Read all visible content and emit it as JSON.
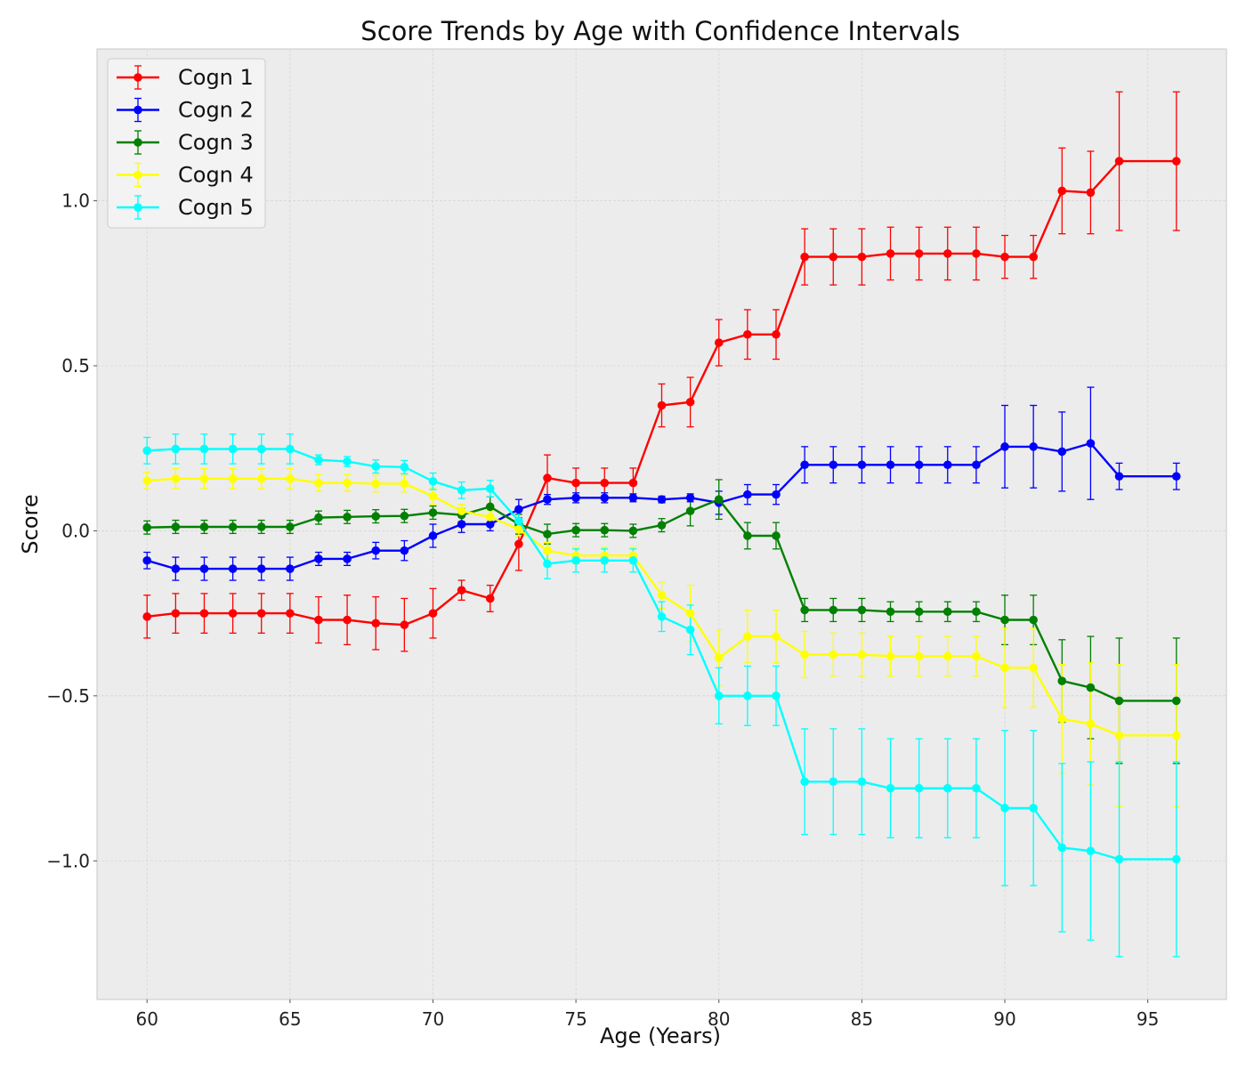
{
  "chart_data": {
    "type": "line",
    "title": "Score Trends by Age with Confidence Intervals",
    "xlabel": "Age (Years)",
    "ylabel": "Score",
    "xlim": [
      58.25,
      97.75
    ],
    "ylim": [
      -1.42,
      1.46
    ],
    "xticks": [
      60,
      65,
      70,
      75,
      80,
      85,
      90,
      95
    ],
    "xtick_labels": [
      "60",
      "65",
      "70",
      "75",
      "80",
      "85",
      "90",
      "95"
    ],
    "yticks": [
      -1.0,
      -0.5,
      0.0,
      0.5,
      1.0
    ],
    "ytick_labels": [
      "−1.0",
      "−0.5",
      "0.0",
      "0.5",
      "1.0"
    ],
    "grid": true,
    "legend": "top-left",
    "x": [
      60,
      61,
      62,
      63,
      64,
      65,
      66,
      67,
      68,
      69,
      70,
      71,
      72,
      73,
      74,
      75,
      76,
      77,
      78,
      79,
      80,
      81,
      82,
      83,
      84,
      85,
      86,
      87,
      88,
      89,
      90,
      91,
      92,
      93,
      94,
      96
    ],
    "series": [
      {
        "name": "Cogn 1",
        "color": "#ff0000",
        "values": [
          -0.26,
          -0.25,
          -0.25,
          -0.25,
          -0.25,
          -0.25,
          -0.27,
          -0.27,
          -0.28,
          -0.285,
          -0.25,
          -0.18,
          -0.205,
          -0.04,
          0.16,
          0.145,
          0.145,
          0.145,
          0.38,
          0.39,
          0.57,
          0.595,
          0.595,
          0.83,
          0.83,
          0.83,
          0.84,
          0.84,
          0.84,
          0.84,
          0.83,
          0.83,
          1.03,
          1.025,
          1.12,
          1.12
        ],
        "errors": [
          0.065,
          0.06,
          0.06,
          0.06,
          0.06,
          0.06,
          0.07,
          0.075,
          0.08,
          0.08,
          0.075,
          0.03,
          0.04,
          0.08,
          0.07,
          0.045,
          0.045,
          0.045,
          0.065,
          0.075,
          0.07,
          0.075,
          0.075,
          0.085,
          0.085,
          0.085,
          0.08,
          0.08,
          0.08,
          0.08,
          0.065,
          0.065,
          0.13,
          0.125,
          0.21,
          0.21
        ]
      },
      {
        "name": "Cogn 2",
        "color": "#0000ff",
        "values": [
          -0.09,
          -0.115,
          -0.115,
          -0.115,
          -0.115,
          -0.115,
          -0.085,
          -0.085,
          -0.06,
          -0.06,
          -0.015,
          0.02,
          0.02,
          0.065,
          0.095,
          0.1,
          0.1,
          0.1,
          0.095,
          0.1,
          0.085,
          0.11,
          0.11,
          0.2,
          0.2,
          0.2,
          0.2,
          0.2,
          0.2,
          0.2,
          0.255,
          0.255,
          0.24,
          0.265,
          0.165,
          0.165
        ],
        "errors": [
          0.025,
          0.035,
          0.035,
          0.035,
          0.035,
          0.035,
          0.02,
          0.02,
          0.025,
          0.03,
          0.035,
          0.025,
          0.02,
          0.03,
          0.015,
          0.015,
          0.015,
          0.012,
          0.01,
          0.012,
          0.035,
          0.03,
          0.03,
          0.055,
          0.055,
          0.055,
          0.055,
          0.055,
          0.055,
          0.055,
          0.125,
          0.125,
          0.12,
          0.17,
          0.04,
          0.04
        ]
      },
      {
        "name": "Cogn 3",
        "color": "#008000",
        "values": [
          0.01,
          0.012,
          0.012,
          0.012,
          0.012,
          0.012,
          0.04,
          0.042,
          0.044,
          0.045,
          0.055,
          0.048,
          0.073,
          0.02,
          -0.01,
          0.002,
          0.002,
          0.0,
          0.017,
          0.06,
          0.095,
          -0.015,
          -0.015,
          -0.24,
          -0.24,
          -0.24,
          -0.245,
          -0.245,
          -0.245,
          -0.245,
          -0.27,
          -0.27,
          -0.455,
          -0.475,
          -0.515,
          -0.515
        ],
        "errors": [
          0.02,
          0.02,
          0.02,
          0.02,
          0.02,
          0.02,
          0.02,
          0.02,
          0.02,
          0.02,
          0.02,
          0.02,
          0.03,
          0.03,
          0.03,
          0.02,
          0.02,
          0.02,
          0.02,
          0.045,
          0.06,
          0.04,
          0.04,
          0.035,
          0.035,
          0.035,
          0.03,
          0.03,
          0.03,
          0.03,
          0.075,
          0.075,
          0.125,
          0.155,
          0.19,
          0.19
        ]
      },
      {
        "name": "Cogn 4",
        "color": "#ffff00",
        "values": [
          0.152,
          0.158,
          0.158,
          0.158,
          0.158,
          0.158,
          0.145,
          0.145,
          0.143,
          0.143,
          0.105,
          0.06,
          0.042,
          0.005,
          -0.06,
          -0.075,
          -0.075,
          -0.075,
          -0.195,
          -0.25,
          -0.385,
          -0.32,
          -0.32,
          -0.375,
          -0.375,
          -0.375,
          -0.38,
          -0.38,
          -0.38,
          -0.38,
          -0.415,
          -0.415,
          -0.57,
          -0.585,
          -0.62,
          -0.62
        ],
        "errors": [
          0.025,
          0.03,
          0.03,
          0.03,
          0.03,
          0.03,
          0.025,
          0.025,
          0.025,
          0.025,
          0.025,
          0.02,
          0.02,
          0.02,
          0.025,
          0.025,
          0.025,
          0.025,
          0.04,
          0.085,
          0.085,
          0.08,
          0.08,
          0.07,
          0.065,
          0.065,
          0.06,
          0.06,
          0.06,
          0.06,
          0.12,
          0.12,
          0.165,
          0.185,
          0.215,
          0.215
        ]
      },
      {
        "name": "Cogn 5",
        "color": "#00ffff",
        "values": [
          0.243,
          0.248,
          0.248,
          0.248,
          0.248,
          0.248,
          0.215,
          0.21,
          0.195,
          0.193,
          0.15,
          0.123,
          0.128,
          0.03,
          -0.1,
          -0.09,
          -0.09,
          -0.09,
          -0.26,
          -0.3,
          -0.5,
          -0.5,
          -0.5,
          -0.76,
          -0.76,
          -0.76,
          -0.78,
          -0.78,
          -0.78,
          -0.78,
          -0.84,
          -0.84,
          -0.96,
          -0.97,
          -0.995,
          -0.995
        ],
        "errors": [
          0.04,
          0.045,
          0.045,
          0.045,
          0.045,
          0.045,
          0.015,
          0.015,
          0.02,
          0.02,
          0.025,
          0.025,
          0.025,
          0.03,
          0.045,
          0.035,
          0.035,
          0.035,
          0.045,
          0.075,
          0.085,
          0.09,
          0.09,
          0.16,
          0.16,
          0.16,
          0.15,
          0.15,
          0.15,
          0.15,
          0.235,
          0.235,
          0.255,
          0.27,
          0.295,
          0.295
        ]
      }
    ]
  }
}
